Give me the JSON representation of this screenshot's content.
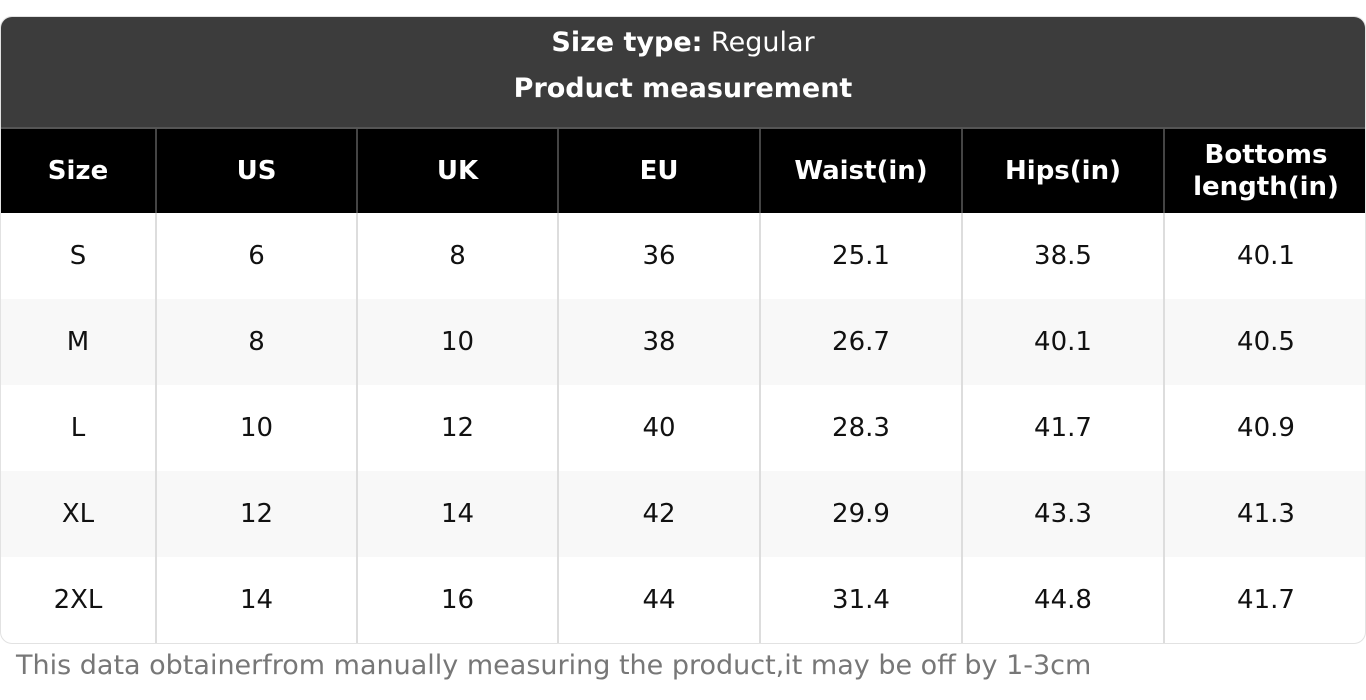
{
  "header": {
    "label": "Size type:",
    "value": "Regular",
    "subtitle": "Product measurement"
  },
  "table": {
    "columns": [
      "Size",
      "US",
      "UK",
      "EU",
      "Waist(in)",
      "Hips(in)",
      "Bottoms length(in)"
    ],
    "rows": [
      [
        "S",
        6,
        8,
        36,
        25.1,
        38.5,
        40.1
      ],
      [
        "M",
        8,
        10,
        38,
        26.7,
        40.1,
        40.5
      ],
      [
        "L",
        10,
        12,
        40,
        28.3,
        41.7,
        40.9
      ],
      [
        "XL",
        12,
        14,
        42,
        29.9,
        43.3,
        41.3
      ],
      [
        "2XL",
        14,
        16,
        44,
        31.4,
        44.8,
        41.7
      ]
    ]
  },
  "note": "This data obtainerfrom manually measuring the product,it may be off by 1-3cm"
}
